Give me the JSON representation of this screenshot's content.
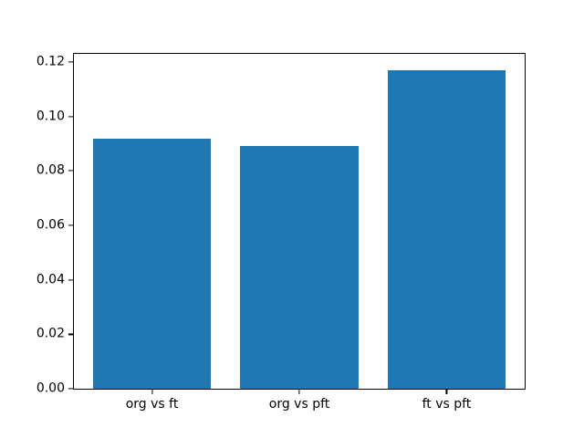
{
  "chart_data": {
    "type": "bar",
    "title": "",
    "xlabel": "",
    "ylabel": "",
    "categories": [
      "org vs ft",
      "org vs pft",
      "ft vs pft"
    ],
    "values": [
      0.092,
      0.089,
      0.117
    ],
    "ylim": [
      0,
      0.123
    ],
    "yticks": [
      0.0,
      0.02,
      0.04,
      0.06,
      0.08,
      0.1,
      0.12
    ],
    "ytick_labels": [
      "0.00",
      "0.02",
      "0.04",
      "0.06",
      "0.08",
      "0.10",
      "0.12"
    ],
    "grid": false,
    "legend": false,
    "bar_color": "#1f77b4",
    "axis_color": "#000000",
    "background_color": "#ffffff"
  }
}
